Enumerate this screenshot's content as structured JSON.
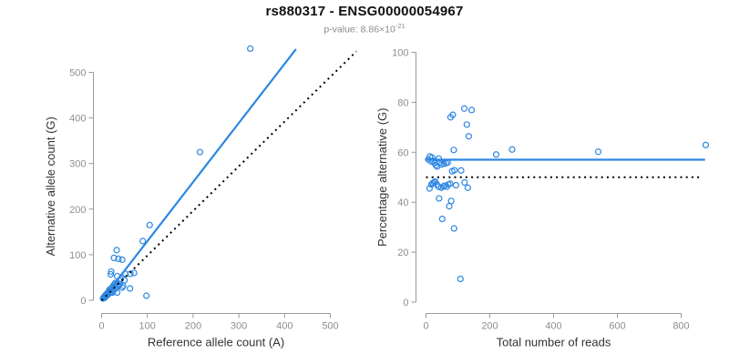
{
  "header": {
    "title": "rs880317 - ENSG00000054967",
    "pvalue_label": "p-value: ",
    "pvalue_mantissa": "8.86×10",
    "pvalue_exponent": "-21"
  },
  "colors": {
    "accent_blue": "#2d87e2",
    "reference_black": "#000000",
    "tick_gray": "#8d8d8d",
    "axis_gray": "#9a9a9a",
    "axis_title": "#333333",
    "subtitle_gray": "#8a8a8a"
  },
  "chart_data": [
    {
      "type": "scatter",
      "name": "allele-counts-scatter",
      "xlabel": "Reference allele count (A)",
      "ylabel": "Alternative allele count (G)",
      "xlim": [
        0,
        500
      ],
      "ylim": [
        0,
        500
      ],
      "xticks": [
        0,
        100,
        200,
        300,
        400,
        500
      ],
      "yticks": [
        0,
        100,
        200,
        300,
        400,
        500
      ],
      "grid": false,
      "legend": "none",
      "points": [
        [
          3,
          4
        ],
        [
          5,
          7
        ],
        [
          6,
          5
        ],
        [
          7,
          9
        ],
        [
          8,
          11
        ],
        [
          9,
          8
        ],
        [
          10,
          13
        ],
        [
          11,
          10
        ],
        [
          12,
          15
        ],
        [
          13,
          12
        ],
        [
          14,
          17
        ],
        [
          15,
          14
        ],
        [
          16,
          19
        ],
        [
          17,
          23
        ],
        [
          18,
          16
        ],
        [
          19,
          24
        ],
        [
          20,
          57
        ],
        [
          21,
          18
        ],
        [
          21,
          63
        ],
        [
          22,
          27
        ],
        [
          24,
          17
        ],
        [
          25,
          31
        ],
        [
          26,
          22
        ],
        [
          27,
          93
        ],
        [
          28,
          35
        ],
        [
          29,
          25
        ],
        [
          30,
          38
        ],
        [
          31,
          27
        ],
        [
          33,
          110
        ],
        [
          34,
          53
        ],
        [
          34,
          17
        ],
        [
          35,
          30
        ],
        [
          37,
          91
        ],
        [
          37,
          33
        ],
        [
          39,
          43
        ],
        [
          40,
          36
        ],
        [
          42,
          47
        ],
        [
          45,
          89
        ],
        [
          45,
          28
        ],
        [
          47,
          32
        ],
        [
          50,
          44
        ],
        [
          52,
          58
        ],
        [
          62,
          26
        ],
        [
          63,
          58
        ],
        [
          71,
          60
        ],
        [
          90,
          130
        ],
        [
          98,
          10
        ],
        [
          105,
          165
        ],
        [
          215,
          325
        ],
        [
          325,
          552
        ]
      ],
      "lines": [
        {
          "name": "fit-line",
          "style": "solid",
          "color": "#2d87e2",
          "from": [
            0,
            0
          ],
          "to": [
            425,
            551
          ]
        },
        {
          "name": "identity-line",
          "style": "dotted",
          "color": "#000000",
          "from": [
            0,
            0
          ],
          "to": [
            557,
            546
          ]
        }
      ]
    },
    {
      "type": "scatter",
      "name": "percentage-vs-reads-scatter",
      "xlabel": "Total number of reads",
      "ylabel": "Percentage alternative (G)",
      "xlim": [
        0,
        800
      ],
      "ylim": [
        0,
        100
      ],
      "xticks": [
        0,
        200,
        400,
        600,
        800
      ],
      "yticks": [
        0,
        20,
        40,
        60,
        80,
        100
      ],
      "grid": false,
      "legend": "none",
      "points": [
        [
          7,
          57.1
        ],
        [
          12,
          58.3
        ],
        [
          11,
          45.5
        ],
        [
          16,
          56.3
        ],
        [
          19,
          57.9
        ],
        [
          17,
          47.1
        ],
        [
          23,
          56.5
        ],
        [
          21,
          47.6
        ],
        [
          27,
          55.6
        ],
        [
          25,
          48.0
        ],
        [
          31,
          54.8
        ],
        [
          29,
          48.3
        ],
        [
          35,
          54.3
        ],
        [
          40,
          57.5
        ],
        [
          34,
          47.1
        ],
        [
          43,
          55.8
        ],
        [
          77,
          74.0
        ],
        [
          39,
          46.2
        ],
        [
          84,
          75.0
        ],
        [
          49,
          55.1
        ],
        [
          41,
          41.5
        ],
        [
          56,
          55.4
        ],
        [
          48,
          45.8
        ],
        [
          120,
          77.5
        ],
        [
          63,
          55.6
        ],
        [
          54,
          46.3
        ],
        [
          68,
          55.9
        ],
        [
          58,
          46.6
        ],
        [
          143,
          76.9
        ],
        [
          87,
          60.9
        ],
        [
          51,
          33.3
        ],
        [
          65,
          46.2
        ],
        [
          128,
          71.1
        ],
        [
          70,
          47.1
        ],
        [
          82,
          52.4
        ],
        [
          76,
          47.4
        ],
        [
          89,
          52.8
        ],
        [
          134,
          66.4
        ],
        [
          73,
          38.4
        ],
        [
          79,
          40.5
        ],
        [
          94,
          46.8
        ],
        [
          110,
          52.7
        ],
        [
          88,
          29.5
        ],
        [
          121,
          47.9
        ],
        [
          131,
          45.8
        ],
        [
          220,
          59.1
        ],
        [
          108,
          9.3
        ],
        [
          270,
          61.1
        ],
        [
          540,
          60.2
        ],
        [
          877,
          62.9
        ]
      ],
      "lines": [
        {
          "name": "mean-line",
          "style": "solid",
          "color": "#2d87e2",
          "from": [
            0,
            57
          ],
          "to": [
            875,
            57
          ]
        },
        {
          "name": "expected-line",
          "style": "dotted",
          "color": "#000000",
          "from": [
            0,
            50
          ],
          "to": [
            860,
            50
          ]
        }
      ]
    }
  ]
}
